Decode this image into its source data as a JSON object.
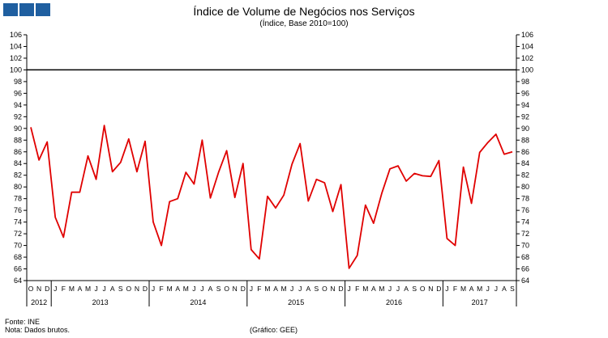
{
  "chart_data": {
    "type": "line",
    "title": "Índice de Volume de Negócios nos Serviços",
    "subtitle": "(Índice, Base 2010=100)",
    "ylim": [
      64,
      106
    ],
    "yticks": [
      64,
      66,
      68,
      70,
      72,
      74,
      76,
      78,
      80,
      82,
      84,
      86,
      88,
      90,
      92,
      94,
      96,
      98,
      100,
      102,
      104,
      106
    ],
    "reference_line": 100,
    "months": [
      "O",
      "N",
      "D",
      "J",
      "F",
      "M",
      "A",
      "M",
      "J",
      "J",
      "A",
      "S",
      "O",
      "N",
      "D",
      "J",
      "F",
      "M",
      "A",
      "M",
      "J",
      "J",
      "A",
      "S",
      "O",
      "N",
      "D",
      "J",
      "F",
      "M",
      "A",
      "M",
      "J",
      "J",
      "A",
      "S",
      "O",
      "N",
      "D",
      "J",
      "F",
      "M",
      "A",
      "M",
      "J",
      "J",
      "A",
      "S",
      "O",
      "N",
      "D",
      "J",
      "F",
      "M",
      "A",
      "M",
      "J",
      "J",
      "A",
      "S"
    ],
    "years": [
      {
        "label": "2012",
        "start": 0,
        "count": 3
      },
      {
        "label": "2013",
        "start": 3,
        "count": 12
      },
      {
        "label": "2014",
        "start": 15,
        "count": 12
      },
      {
        "label": "2015",
        "start": 27,
        "count": 12
      },
      {
        "label": "2016",
        "start": 39,
        "count": 12
      },
      {
        "label": "2017",
        "start": 51,
        "count": 9
      }
    ],
    "series": [
      {
        "name": "Índice de Volume de Negócios nos Serviços",
        "color": "#e00000",
        "values": [
          90.2,
          84.6,
          87.7,
          74.8,
          71.4,
          79.1,
          79.1,
          85.3,
          81.3,
          90.5,
          82.6,
          84.2,
          88.2,
          82.6,
          87.8,
          74,
          70,
          77.5,
          78,
          82.5,
          80.5,
          88,
          78.1,
          82.5,
          86.2,
          78.2,
          84,
          69.3,
          67.7,
          78.4,
          76.4,
          78.6,
          83.9,
          87.4,
          77.6,
          81.3,
          80.7,
          75.8,
          80.4,
          66.1,
          68.3,
          76.9,
          73.8,
          78.9,
          83.1,
          83.6,
          81,
          82.3,
          81.9,
          81.8,
          84.5,
          71.2,
          70,
          83.4,
          77.2,
          85.9,
          87.6,
          89,
          85.6,
          86
        ]
      }
    ]
  },
  "footer": {
    "source": "Fonte: INE",
    "note": "Nota: Dados brutos.",
    "credit": "(Gráfico: GEE)"
  }
}
